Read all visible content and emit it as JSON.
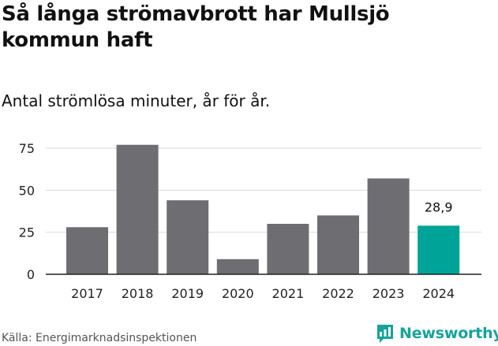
{
  "title": "Så långa strömavbrott har Mullsjö kommun haft",
  "subtitle": "Antal strömlösa minuter, år för år.",
  "source": "Källa: Energimarknadsinspektionen",
  "brand": {
    "name": "Newsworthy",
    "color": "#17a39a",
    "icon": "bar-chart-logo-icon"
  },
  "colors": {
    "bar": "#6e6d72",
    "highlight": "#00a398",
    "grid": "#d9d9d9",
    "axis": "#222222"
  },
  "chart_data": {
    "type": "bar",
    "title": "Så långa strömavbrott har Mullsjö kommun haft",
    "subtitle": "Antal strömlösa minuter, år för år.",
    "xlabel": "",
    "ylabel": "",
    "categories": [
      "2017",
      "2018",
      "2019",
      "2020",
      "2021",
      "2022",
      "2023",
      "2024"
    ],
    "values": [
      28,
      77,
      44,
      9,
      30,
      35,
      57,
      28.9
    ],
    "highlight_index": 7,
    "data_labels": [
      {
        "index": 7,
        "text": "28,9"
      }
    ],
    "ylim": [
      0,
      85
    ],
    "yticks": [
      0,
      25,
      50,
      75
    ],
    "ytick_labels": [
      "0",
      "25",
      "50",
      "75"
    ],
    "grid": true
  }
}
